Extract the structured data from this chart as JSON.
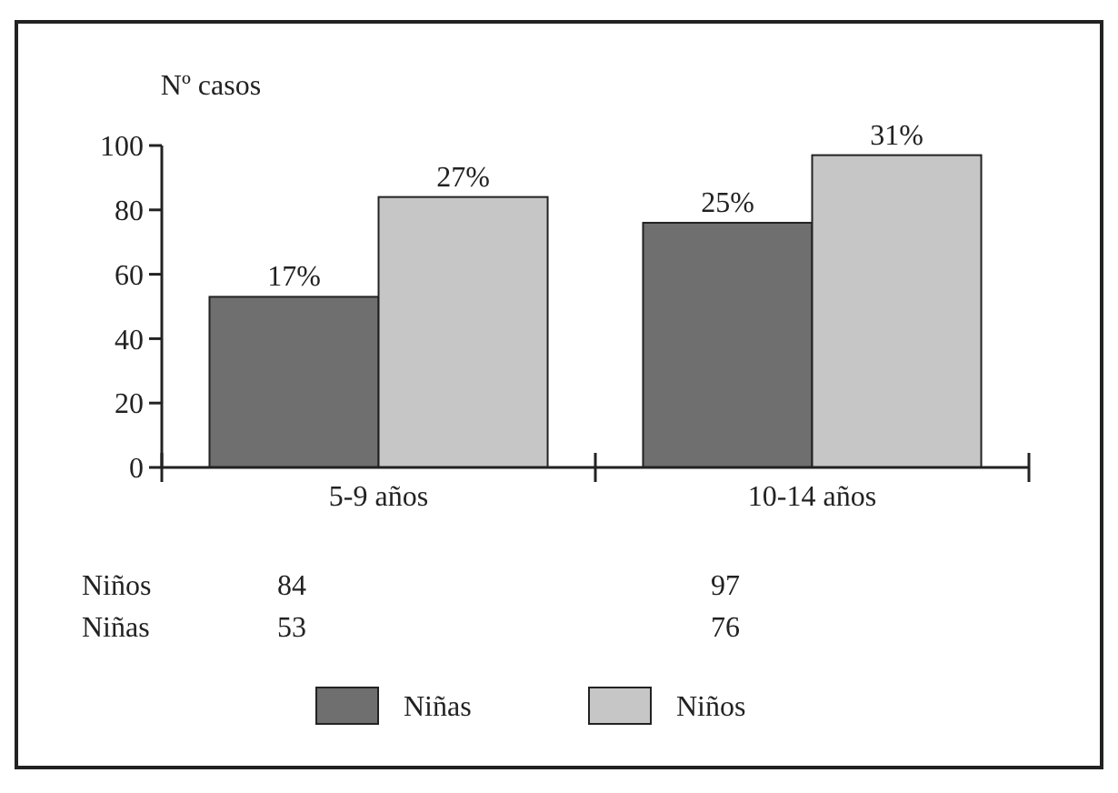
{
  "chart_data": {
    "type": "bar",
    "ylabel": "Nº casos",
    "categories": [
      "5-9 años",
      "10-14 años"
    ],
    "series": [
      {
        "name": "Niñas",
        "color": "#6f6f6f",
        "values": [
          53,
          76
        ],
        "value_labels": [
          "53",
          "76"
        ]
      },
      {
        "name": "Niños",
        "color": "#c6c6c6",
        "values": [
          84,
          97
        ],
        "value_labels": [
          "84",
          "97"
        ]
      }
    ],
    "annotations": [
      {
        "text": "17%",
        "x": "5-9 años",
        "y": 53
      },
      {
        "text": "27%",
        "x": "5-9 años",
        "y": 84
      },
      {
        "text": "25%",
        "x": "10-14 años",
        "y": 76
      },
      {
        "text": "31%",
        "x": "10-14 años",
        "y": 97
      }
    ],
    "ylim": [
      0,
      100
    ],
    "yticks": [
      0,
      20,
      40,
      60,
      80,
      100
    ],
    "legend": "bottom"
  }
}
